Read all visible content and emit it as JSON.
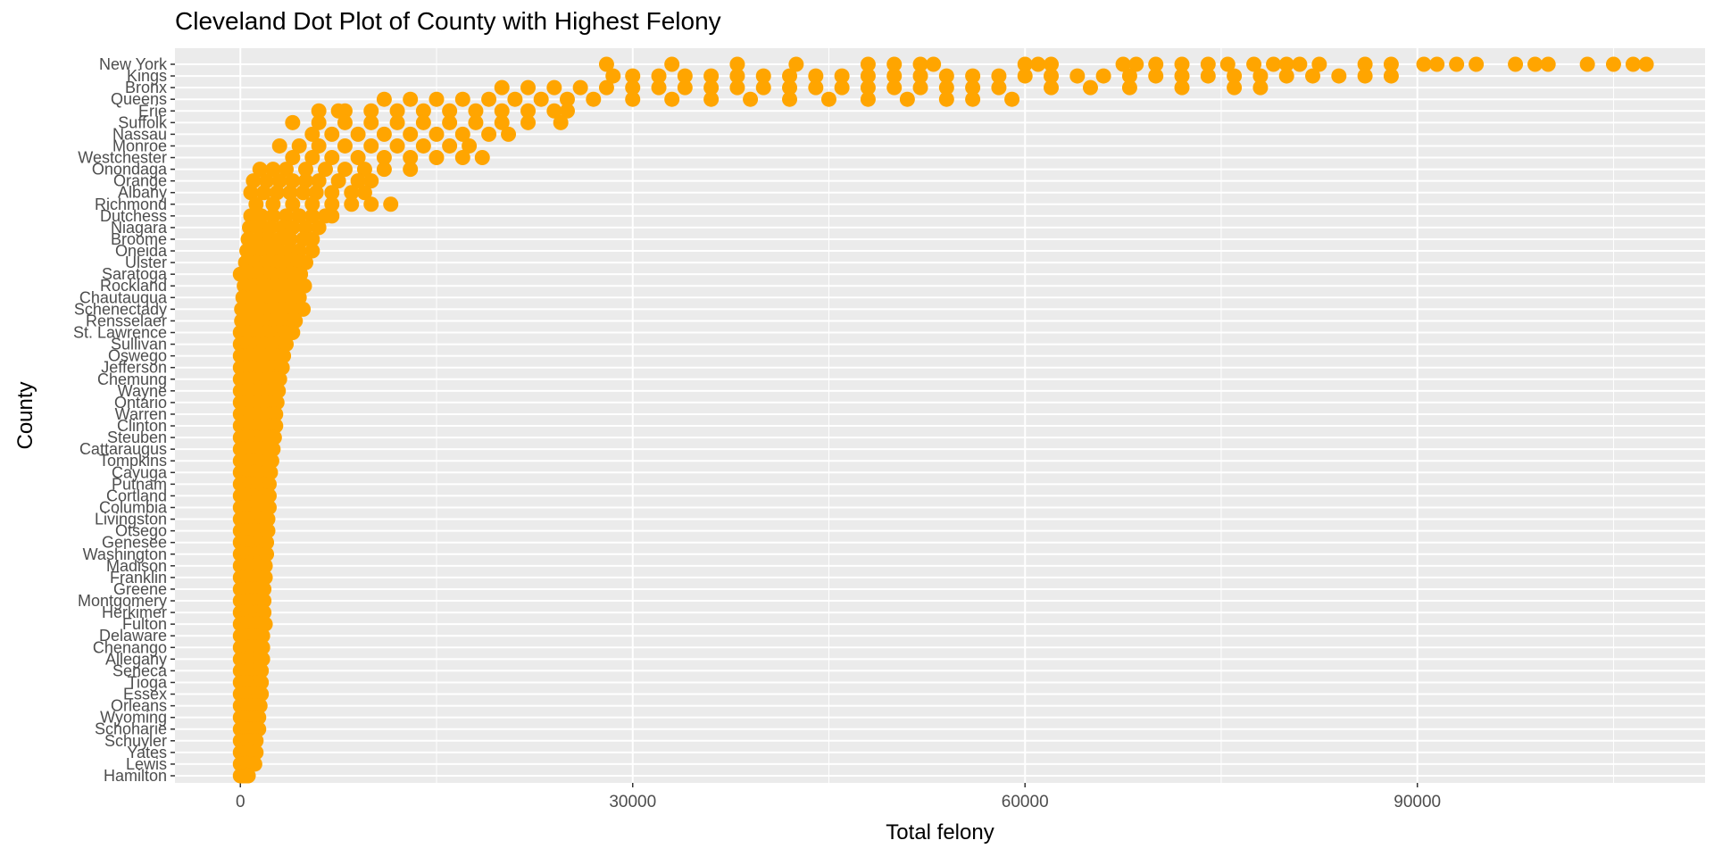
{
  "chart_data": {
    "type": "scatter",
    "title": "Cleveland Dot Plot of County with Highest Felony",
    "xlabel": "Total felony",
    "ylabel": "County",
    "xlim": [
      -5000,
      112000
    ],
    "x_ticks": [
      0,
      30000,
      60000,
      90000
    ],
    "x_tick_labels": [
      "0",
      "30000",
      "60000",
      "90000"
    ],
    "grid": true,
    "legend": "none",
    "point_color": "#FFA500",
    "panel_color": "#EBEBEB",
    "grid_color": "#FFFFFF",
    "counties": [
      "New York",
      "Kings",
      "Bronx",
      "Queens",
      "Erie",
      "Suffolk",
      "Nassau",
      "Monroe",
      "Westchester",
      "Onondaga",
      "Orange",
      "Albany",
      "Richmond",
      "Dutchess",
      "Niagara",
      "Broome",
      "Oneida",
      "Ulster",
      "Saratoga",
      "Rockland",
      "Chautauqua",
      "Schenectady",
      "Rensselaer",
      "St. Lawrence",
      "Sullivan",
      "Oswego",
      "Jefferson",
      "Chemung",
      "Wayne",
      "Ontario",
      "Warren",
      "Clinton",
      "Steuben",
      "Cattaraugus",
      "Tompkins",
      "Cayuga",
      "Putnam",
      "Cortland",
      "Columbia",
      "Livingston",
      "Otsego",
      "Genesee",
      "Washington",
      "Madison",
      "Franklin",
      "Greene",
      "Montgomery",
      "Herkimer",
      "Fulton",
      "Delaware",
      "Chenango",
      "Allegany",
      "Seneca",
      "Tioga",
      "Essex",
      "Orleans",
      "Wyoming",
      "Schoharie",
      "Schuyler",
      "Yates",
      "Lewis",
      "Hamilton"
    ],
    "values": [
      [
        28000,
        33000,
        38000,
        42500,
        48000,
        50000,
        52000,
        53000,
        60000,
        61000,
        62000,
        67500,
        68500,
        70000,
        72000,
        74000,
        75500,
        77500,
        79000,
        80000,
        81000,
        82500,
        86000,
        88000,
        90500,
        91500,
        93000,
        94500,
        97500,
        99000,
        100000,
        103000,
        105000,
        106500,
        107500
      ],
      [
        28500,
        30000,
        32000,
        34000,
        36000,
        38000,
        40000,
        42000,
        44000,
        46000,
        48000,
        50000,
        52000,
        54000,
        56000,
        58000,
        60000,
        62000,
        64000,
        66000,
        68000,
        70000,
        72000,
        74000,
        76000,
        78000,
        80000,
        82000,
        84000,
        86000,
        88000
      ],
      [
        20000,
        22000,
        24000,
        26000,
        28000,
        30000,
        32000,
        34000,
        36000,
        38000,
        40000,
        42000,
        44000,
        46000,
        48000,
        50000,
        52000,
        54000,
        56000,
        58000,
        62000,
        65000,
        68000,
        72000,
        76000,
        78000
      ],
      [
        11000,
        13000,
        15000,
        17000,
        19000,
        21000,
        23000,
        25000,
        27000,
        30000,
        33000,
        36000,
        39000,
        42000,
        45000,
        48000,
        51000,
        54000,
        56000,
        59000
      ],
      [
        6000,
        7500,
        8000,
        10000,
        12000,
        14000,
        16000,
        18000,
        20000,
        22000,
        24000,
        25000
      ],
      [
        4000,
        6000,
        8000,
        10000,
        12000,
        14000,
        16000,
        18000,
        20000,
        22000,
        24500
      ],
      [
        5500,
        7000,
        9000,
        11000,
        13000,
        15000,
        17000,
        19000,
        20500
      ],
      [
        3000,
        4500,
        6000,
        8000,
        10000,
        12000,
        14000,
        16000,
        17500
      ],
      [
        4000,
        5500,
        7000,
        9000,
        11000,
        13000,
        15000,
        17000,
        18500
      ],
      [
        1500,
        2500,
        3500,
        5000,
        6500,
        8000,
        9500,
        11000,
        13000
      ],
      [
        1000,
        2000,
        3000,
        4000,
        5000,
        6000,
        7500,
        9000,
        10000
      ],
      [
        800,
        1800,
        2800,
        3800,
        4800,
        5800,
        7000,
        8500,
        9500
      ],
      [
        1200,
        2500,
        4000,
        5500,
        7000,
        8500,
        10000,
        11500
      ],
      [
        800,
        1600,
        2500,
        3500,
        4500,
        5500,
        6500,
        7000
      ],
      [
        700,
        1500,
        2300,
        3200,
        4000,
        5000,
        6000
      ],
      [
        600,
        1400,
        2200,
        3000,
        3800,
        4800,
        5500
      ],
      [
        500,
        1300,
        2100,
        2900,
        3700,
        4500,
        5500
      ],
      [
        400,
        1200,
        2000,
        2800,
        3600,
        4400,
        5000
      ],
      [
        0,
        800,
        1600,
        2400,
        3200,
        4000,
        4600
      ],
      [
        300,
        1000,
        1800,
        2600,
        3400,
        4200,
        4900
      ],
      [
        200,
        900,
        1700,
        2500,
        3300,
        4100,
        4500
      ],
      [
        100,
        800,
        1600,
        2400,
        3200,
        4000,
        4800
      ],
      [
        100,
        700,
        1400,
        2100,
        2800,
        3500,
        4200
      ],
      [
        0,
        600,
        1300,
        2000,
        2700,
        3400,
        4000
      ],
      [
        0,
        600,
        1200,
        1800,
        2400,
        3000,
        3500
      ],
      [
        0,
        500,
        1100,
        1700,
        2300,
        2900,
        3300
      ],
      [
        0,
        500,
        1000,
        1600,
        2200,
        2800,
        3200
      ],
      [
        0,
        500,
        1000,
        1500,
        2000,
        2500,
        3000
      ],
      [
        0,
        400,
        900,
        1400,
        1900,
        2400,
        2900
      ],
      [
        0,
        400,
        900,
        1400,
        1900,
        2400,
        2800
      ],
      [
        0,
        400,
        800,
        1300,
        1800,
        2300,
        2700
      ],
      [
        0,
        400,
        800,
        1300,
        1800,
        2300,
        2700
      ],
      [
        0,
        400,
        800,
        1200,
        1700,
        2200,
        2600
      ],
      [
        0,
        300,
        700,
        1100,
        1600,
        2100,
        2500
      ],
      [
        0,
        300,
        700,
        1100,
        1500,
        2000,
        2400
      ],
      [
        0,
        300,
        700,
        1100,
        1500,
        1900,
        2300
      ],
      [
        0,
        300,
        700,
        1000,
        1400,
        1800,
        2200
      ],
      [
        0,
        300,
        600,
        1000,
        1400,
        1800,
        2200
      ],
      [
        0,
        300,
        600,
        1000,
        1400,
        1800,
        2200
      ],
      [
        0,
        300,
        600,
        900,
        1300,
        1700,
        2100
      ],
      [
        0,
        300,
        600,
        900,
        1300,
        1700,
        2100
      ],
      [
        0,
        300,
        600,
        900,
        1300,
        1700,
        2000
      ],
      [
        0,
        300,
        600,
        900,
        1200,
        1600,
        2000
      ],
      [
        0,
        300,
        600,
        900,
        1200,
        1600,
        1900
      ],
      [
        0,
        300,
        600,
        900,
        1200,
        1500,
        1900
      ],
      [
        0,
        300,
        600,
        900,
        1200,
        1500,
        1800
      ],
      [
        0,
        300,
        600,
        900,
        1200,
        1500,
        1800
      ],
      [
        0,
        300,
        600,
        900,
        1200,
        1500,
        1800
      ],
      [
        0,
        300,
        600,
        900,
        1200,
        1600,
        1900
      ],
      [
        0,
        300,
        600,
        900,
        1200,
        1500,
        1700
      ],
      [
        0,
        300,
        600,
        900,
        1200,
        1500,
        1700
      ],
      [
        0,
        300,
        600,
        900,
        1200,
        1500,
        1700
      ],
      [
        0,
        300,
        600,
        900,
        1200,
        1500,
        1600
      ],
      [
        0,
        300,
        600,
        900,
        1200,
        1500,
        1600
      ],
      [
        0,
        300,
        600,
        900,
        1200,
        1400,
        1600
      ],
      [
        0,
        300,
        600,
        900,
        1100,
        1300,
        1500
      ],
      [
        0,
        300,
        600,
        800,
        1000,
        1200,
        1400
      ],
      [
        0,
        300,
        600,
        800,
        1000,
        1200,
        1400
      ],
      [
        0,
        200,
        400,
        600,
        800,
        1000,
        1200
      ],
      [
        0,
        200,
        400,
        600,
        800,
        1000,
        1200
      ],
      [
        0,
        200,
        400,
        600,
        800,
        1000,
        1100
      ],
      [
        0,
        100,
        200,
        300,
        400,
        500,
        600
      ]
    ]
  }
}
